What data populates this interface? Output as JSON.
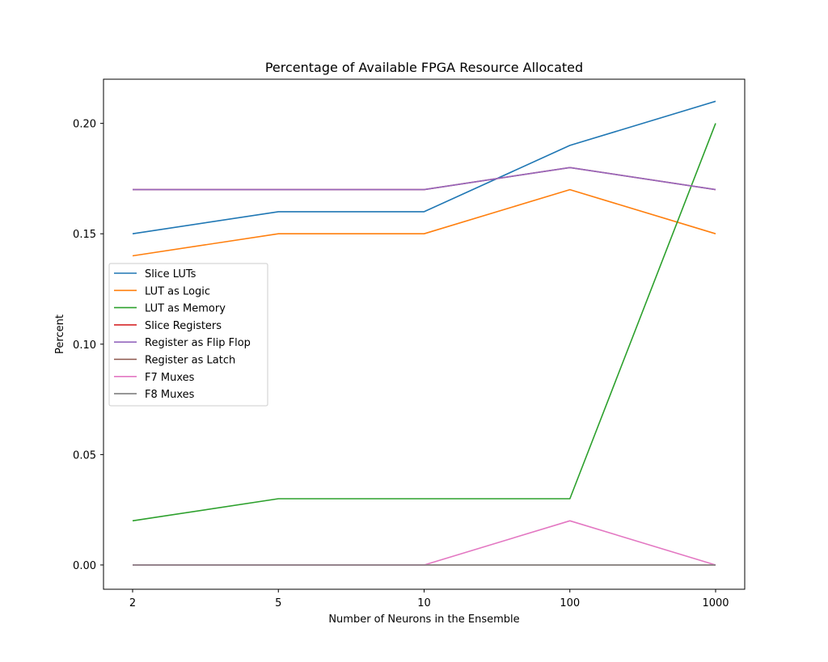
{
  "chart_data": {
    "type": "line",
    "title": "Percentage of Available FPGA Resource Allocated",
    "xlabel": "Number of Neurons in the Ensemble",
    "ylabel": "Percent",
    "x_scale": "categorical",
    "categories": [
      "2",
      "5",
      "10",
      "100",
      "1000"
    ],
    "ylim": [
      -0.011,
      0.22
    ],
    "yticks": [
      0.0,
      0.05,
      0.1,
      0.15,
      0.2
    ],
    "ytick_labels": [
      "0.00",
      "0.05",
      "0.10",
      "0.15",
      "0.20"
    ],
    "grid": false,
    "legend_placement": "center-left",
    "series": [
      {
        "name": "Slice LUTs",
        "color": "#1f77b4",
        "values": [
          0.15,
          0.16,
          0.16,
          0.19,
          0.21
        ]
      },
      {
        "name": "LUT as Logic",
        "color": "#ff7f0e",
        "values": [
          0.14,
          0.15,
          0.15,
          0.17,
          0.15
        ]
      },
      {
        "name": "LUT as Memory",
        "color": "#2ca02c",
        "values": [
          0.02,
          0.03,
          0.03,
          0.03,
          0.2
        ]
      },
      {
        "name": "Slice Registers",
        "color": "#d62728",
        "values": [
          0.17,
          0.17,
          0.17,
          0.18,
          0.17
        ]
      },
      {
        "name": "Register as Flip Flop",
        "color": "#9467bd",
        "values": [
          0.17,
          0.17,
          0.17,
          0.18,
          0.17
        ]
      },
      {
        "name": "Register as Latch",
        "color": "#8c564b",
        "values": [
          0.0,
          0.0,
          0.0,
          0.0,
          0.0
        ]
      },
      {
        "name": "F7 Muxes",
        "color": "#e377c2",
        "values": [
          0.0,
          0.0,
          0.0,
          0.02,
          0.0
        ]
      },
      {
        "name": "F8 Muxes",
        "color": "#7f7f7f",
        "values": [
          0.0,
          0.0,
          0.0,
          0.0,
          0.0
        ]
      }
    ]
  }
}
